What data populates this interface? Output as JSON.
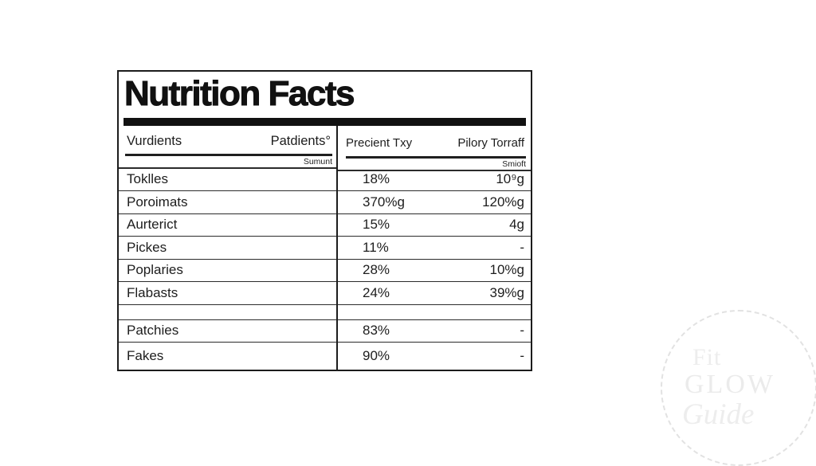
{
  "label": {
    "title": "Nutrition Facts",
    "header": {
      "col1_left": "Vurdients",
      "col1_right": "Patdients°",
      "col1_sub": "Sumunt",
      "col2_left": "Precient Txy",
      "col2_right": "Pilory Torraff",
      "col2_sub": "Smioft"
    },
    "rows": [
      {
        "name": "Toklles",
        "value": "18%",
        "amount": "10⁹g",
        "section": 1
      },
      {
        "name": "Poroimats",
        "value": "370%g",
        "amount": "120%g",
        "section": 1
      },
      {
        "name": "Aurterict",
        "value": "15%",
        "amount": "4g",
        "section": 1
      },
      {
        "name": "Pickes",
        "value": "11%",
        "amount": "-",
        "section": 1
      },
      {
        "name": "Poplaries",
        "value": "28%",
        "amount": "10%g",
        "section": 1
      },
      {
        "name": "Flabasts",
        "value": "24%",
        "amount": "39%g",
        "section": 1
      },
      {
        "name": "Patchies",
        "value": "83%",
        "amount": "-",
        "section": 2
      },
      {
        "name": "Fakes",
        "value": "90%",
        "amount": "-",
        "section": 2
      }
    ]
  },
  "watermark": {
    "line1": "Fit",
    "line2": "GLOW",
    "line3": "Guide"
  },
  "colors": {
    "ink": "#1c1c1c",
    "thin_line": "#2b2b2b",
    "watermark_gray": "#ededed",
    "background": "#ffffff"
  }
}
